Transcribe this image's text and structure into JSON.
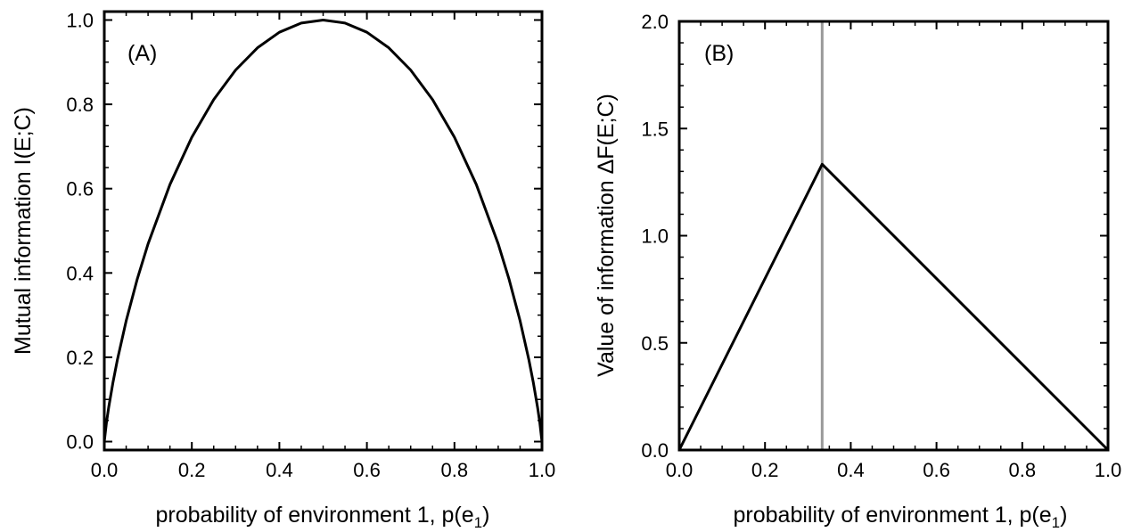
{
  "chart_data": [
    {
      "type": "line",
      "panel_label": "(A)",
      "xlabel": "probability of environment 1, p(e",
      "xlabel_sub": "1",
      "xlabel_tail": ")",
      "ylabel": "Mutual information I(E;C)",
      "xlim": [
        0.0,
        1.0
      ],
      "ylim": [
        -0.02,
        1.02
      ],
      "xticks": [
        "0.0",
        "0.2",
        "0.4",
        "0.6",
        "0.8",
        "1.0"
      ],
      "yticks": [
        "0.0",
        "0.2",
        "0.4",
        "0.6",
        "0.8",
        "1.0"
      ],
      "grid": false,
      "series": [
        {
          "color": "#000000",
          "x": [
            0.0,
            0.005,
            0.01,
            0.02,
            0.03,
            0.05,
            0.075,
            0.1,
            0.15,
            0.2,
            0.25,
            0.3,
            0.35,
            0.4,
            0.45,
            0.5,
            0.55,
            0.6,
            0.65,
            0.7,
            0.75,
            0.8,
            0.85,
            0.9,
            0.925,
            0.95,
            0.97,
            0.98,
            0.99,
            0.995,
            1.0
          ],
          "y": [
            0.0,
            0.0454,
            0.0808,
            0.1414,
            0.1944,
            0.2864,
            0.3843,
            0.469,
            0.6098,
            0.7219,
            0.8113,
            0.8813,
            0.9341,
            0.971,
            0.9928,
            1.0,
            0.9928,
            0.971,
            0.9341,
            0.8813,
            0.8113,
            0.7219,
            0.6098,
            0.469,
            0.3843,
            0.2864,
            0.1944,
            0.1414,
            0.0808,
            0.0454,
            0.0
          ]
        }
      ]
    },
    {
      "type": "line",
      "panel_label": "(B)",
      "xlabel": "probability of environment 1, p(e",
      "xlabel_sub": "1",
      "xlabel_tail": ")",
      "ylabel": "Value of information ΔF(E;C)",
      "xlim": [
        0.0,
        1.0
      ],
      "ylim": [
        0.0,
        2.0
      ],
      "xticks": [
        "0.0",
        "0.2",
        "0.4",
        "0.6",
        "0.8",
        "1.0"
      ],
      "yticks": [
        "0.0",
        "0.5",
        "1.0",
        "1.5",
        "2.0"
      ],
      "grid": false,
      "vline": {
        "x": 0.3333,
        "color": "#999999"
      },
      "series": [
        {
          "color": "#000000",
          "x": [
            0.0,
            0.3333,
            1.0
          ],
          "y": [
            0.0,
            1.3333,
            0.0
          ]
        }
      ]
    }
  ]
}
